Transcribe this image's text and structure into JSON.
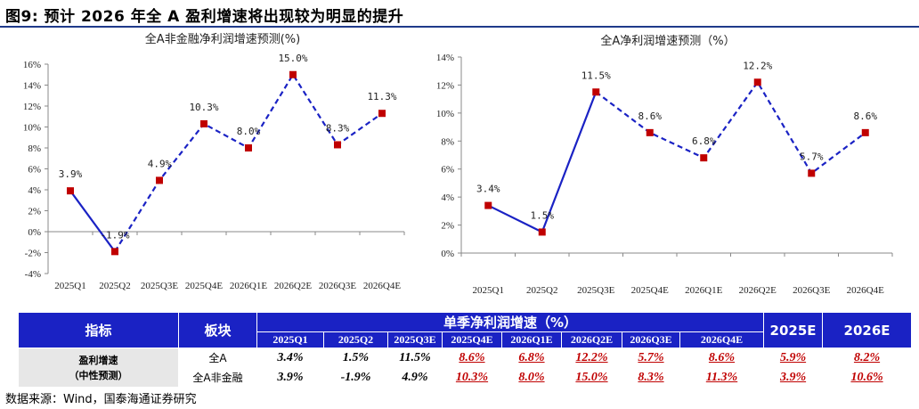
{
  "figure": {
    "title": "图9:  预计 2026 年全 A 盈利增速将出现较为明显的提升",
    "source": "数据来源：Wind，国泰海通证券研究"
  },
  "chart_data": [
    {
      "type": "line",
      "title": "全A非金融净利润增速预测(%)",
      "categories": [
        "2025Q1",
        "2025Q2",
        "2025Q3E",
        "2025Q4E",
        "2026Q1E",
        "2026Q2E",
        "2026Q3E",
        "2026Q4E"
      ],
      "values": [
        3.9,
        -1.9,
        4.9,
        10.3,
        8.0,
        15.0,
        8.3,
        11.3
      ],
      "data_labels": [
        "3.9%",
        "-1.9%",
        "4.9%",
        "10.3%",
        "8.0%",
        "15.0%",
        "8.3%",
        "11.3%"
      ],
      "y_ticks": [
        "16%",
        "14%",
        "12%",
        "10%",
        "8%",
        "6%",
        "4%",
        "2%",
        "0%",
        "-2%",
        "-4%"
      ],
      "ylim": [
        -4,
        16
      ],
      "actual_count": 2,
      "line_color": "#1a22c4",
      "marker_color": "#c00000",
      "grid": false
    },
    {
      "type": "line",
      "title": "全A净利润增速预测（%）",
      "categories": [
        "2025Q1",
        "2025Q2",
        "2025Q3E",
        "2025Q4E",
        "2026Q1E",
        "2026Q2E",
        "2026Q3E",
        "2026Q4E"
      ],
      "values": [
        3.4,
        1.5,
        11.5,
        8.6,
        6.8,
        12.2,
        5.7,
        8.6
      ],
      "data_labels": [
        "3.4%",
        "1.5%",
        "11.5%",
        "8.6%",
        "6.8%",
        "12.2%",
        "5.7%",
        "8.6%"
      ],
      "y_ticks": [
        "14%",
        "12%",
        "10%",
        "8%",
        "6%",
        "4%",
        "2%",
        "0%"
      ],
      "ylim": [
        0,
        14
      ],
      "actual_count": 3,
      "line_color": "#1a22c4",
      "marker_color": "#c00000",
      "grid": false
    }
  ],
  "table": {
    "col_indicator": "指标",
    "col_sector": "板块",
    "col_quarterly": "单季净利润增速（%）",
    "col_2025e": "2025E",
    "col_2026e": "2026E",
    "quarters": [
      "2025Q1",
      "2025Q2",
      "2025Q3E",
      "2025Q4E",
      "2026Q1E",
      "2026Q2E",
      "2026Q3E",
      "2026Q4E"
    ],
    "row_label_line1": "盈利增速",
    "row_label_line2": "（中性预测）",
    "rows": [
      {
        "sector": "全A",
        "values": [
          "3.4%",
          "1.5%",
          "11.5%",
          "8.6%",
          "6.8%",
          "12.2%",
          "5.7%",
          "8.6%"
        ],
        "y2025": "5.9%",
        "y2026": "8.2%"
      },
      {
        "sector": "全A非金融",
        "values": [
          "3.9%",
          "-1.9%",
          "4.9%",
          "10.3%",
          "8.0%",
          "15.0%",
          "8.3%",
          "11.3%"
        ],
        "y2025": "3.9%",
        "y2026": "10.6%"
      }
    ],
    "header_color": "#1a22c4",
    "highlight_color": "#c00000"
  }
}
